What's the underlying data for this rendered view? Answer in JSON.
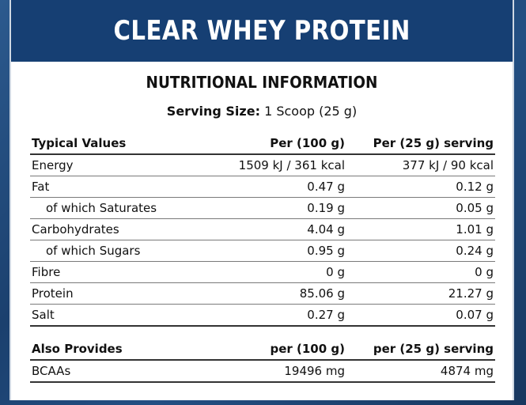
{
  "title": "CLEAR WHEY PROTEIN",
  "heading": "NUTRITIONAL INFORMATION",
  "serving": {
    "label": "Serving Size:",
    "value": "1 Scoop (25 g)"
  },
  "nutrition": {
    "header": {
      "name": "Typical Values",
      "per100": "Per (100 g)",
      "perServing": "Per (25 g) serving"
    },
    "rows": [
      {
        "name": "Energy",
        "per100": "1509 kJ / 361 kcal",
        "perServing": "377 kJ / 90 kcal"
      },
      {
        "name": "Fat",
        "per100": "0.47 g",
        "perServing": "0.12 g"
      },
      {
        "name": "of which Saturates",
        "per100": "0.19 g",
        "perServing": "0.05 g"
      },
      {
        "name": "Carbohydrates",
        "per100": "4.04 g",
        "perServing": "1.01 g"
      },
      {
        "name": "of which Sugars",
        "per100": "0.95 g",
        "perServing": "0.24 g"
      },
      {
        "name": "Fibre",
        "per100": "0 g",
        "perServing": "0 g"
      },
      {
        "name": "Protein",
        "per100": "85.06 g",
        "perServing": "21.27 g"
      },
      {
        "name": "Salt",
        "per100": "0.27 g",
        "perServing": "0.07 g"
      }
    ]
  },
  "also": {
    "header": {
      "name": "Also Provides",
      "per100": "per (100 g)",
      "perServing": "per (25 g) serving"
    },
    "rows": [
      {
        "name": "BCAAs",
        "per100": "19496 mg",
        "perServing": "4874 mg"
      }
    ]
  }
}
